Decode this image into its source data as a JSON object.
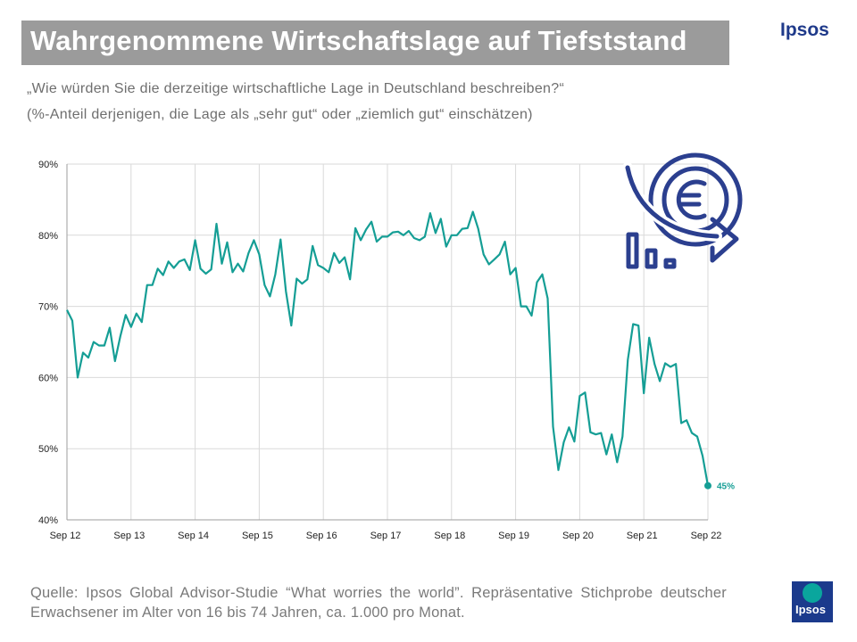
{
  "header": {
    "title": "Wahrgenommene Wirtschaftslage auf Tiefststand",
    "brand": "Ipsos",
    "question": "„Wie würden Sie die derzeitige wirtschaftliche Lage in Deutschland beschreiben?“",
    "note": "(%-Anteil derjenigen, die Lage als „sehr gut“ oder „ziemlich gut“ einschätzen)"
  },
  "footer": {
    "source": "Quelle: Ipsos Global Advisor-Studie “What worries the world”. Repräsentative Stichprobe deutscher Erwachsener im Alter von 16 bis 74 Jahren, ca. 1.000 pro Monat.",
    "logo_text": "Ipsos"
  },
  "icon": "euro-decline-icon",
  "colors": {
    "line": "#159e95",
    "title_bg": "#9b9b9b",
    "brand": "#1f3a8a",
    "icon": "#2b3f8f"
  },
  "chart_data": {
    "type": "line",
    "title": "",
    "xlabel": "",
    "ylabel": "",
    "ylim": [
      40,
      90
    ],
    "grid": true,
    "y_ticks": [
      "40%",
      "50%",
      "60%",
      "70%",
      "80%",
      "90%"
    ],
    "x_ticks": [
      "Sep 12",
      "Sep 13",
      "Sep 14",
      "Sep 15",
      "Sep 16",
      "Sep 17",
      "Sep 18",
      "Sep 19",
      "Sep 20",
      "Sep 21",
      "Sep 22"
    ],
    "end_label": "45%",
    "series": [
      {
        "values": [
          69.5,
          68,
          60,
          63.5,
          62.8,
          65,
          64.5,
          64.5,
          67,
          62.3,
          65.8,
          68.8,
          67.1,
          69,
          67.8,
          73,
          73,
          75.3,
          74.4,
          76.3,
          75.4,
          76.3,
          76.6,
          75.1,
          79.3,
          75.3,
          74.6,
          75.2,
          81.6,
          76,
          79,
          74.8,
          76,
          74.9,
          77.5,
          79.3,
          77.3,
          73,
          71.4,
          74.5,
          79.4,
          72.1,
          67.3,
          73.9,
          73.2,
          73.8,
          78.5,
          75.8,
          75.4,
          74.8,
          77.5,
          76.1,
          76.9,
          73.8,
          81,
          79.3,
          80.8,
          81.9,
          79.1,
          79.8,
          79.8,
          80.4,
          80.5,
          80,
          80.6,
          79.6,
          79.3,
          79.8,
          83.1,
          80.3,
          82.3,
          78.4,
          80,
          80,
          80.9,
          81,
          83.3,
          80.9,
          77.3,
          75.9,
          76.6,
          77.3,
          79.1,
          74.5,
          75.4,
          70,
          70,
          68.7,
          73.4,
          74.5,
          71.1,
          53.1,
          47,
          50.9,
          53,
          51,
          57.4,
          57.9,
          52.3,
          52,
          52.2,
          49.2,
          52,
          48.1,
          51.7,
          62.5,
          67.5,
          67.3,
          57.8,
          65.6,
          61.9,
          59.5,
          62,
          61.5,
          61.9,
          53.6,
          54,
          52.2,
          51.7,
          49,
          44.8
        ]
      }
    ]
  }
}
